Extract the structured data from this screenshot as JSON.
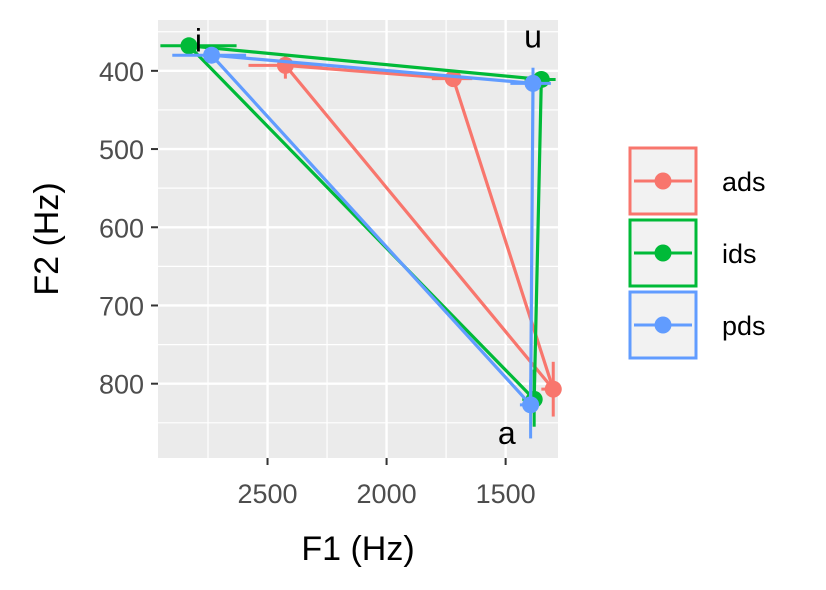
{
  "chart_data": {
    "type": "line",
    "title": "",
    "xlabel": "F1 (Hz)",
    "ylabel": "F2 (Hz)",
    "x_reversed": true,
    "y_reversed": true,
    "xlim": [
      2960,
      1280
    ],
    "ylim": [
      335,
      895
    ],
    "x_ticks": [
      2500,
      2000,
      1500
    ],
    "x_tick_labels": [
      "2500",
      "2000",
      "1500"
    ],
    "y_ticks": [
      400,
      500,
      600,
      700,
      800
    ],
    "y_tick_labels": [
      "400",
      "500",
      "600",
      "700",
      "800"
    ],
    "grid": true,
    "legend_position": "right",
    "vowels": [
      {
        "label": "i",
        "x": 2790,
        "y": 360
      },
      {
        "label": "u",
        "x": 1385,
        "y": 355
      },
      {
        "label": "a",
        "x": 1495,
        "y": 862
      }
    ],
    "series": [
      {
        "name": "ads",
        "color": "#F8766D",
        "points": [
          {
            "vowel": "i",
            "x": 2425,
            "y": 393,
            "x_err": [
              2580,
              2270
            ],
            "y_err": [
              380,
              410
            ]
          },
          {
            "vowel": "u",
            "x": 1720,
            "y": 410,
            "x_err": [
              1810,
              1640
            ],
            "y_err": [
              402,
              418
            ]
          },
          {
            "vowel": "a",
            "x": 1300,
            "y": 807,
            "x_err": [
              1350,
              1265
            ],
            "y_err": [
              772,
              842
            ]
          }
        ]
      },
      {
        "name": "ids",
        "color": "#00BA38",
        "points": [
          {
            "vowel": "i",
            "x": 2830,
            "y": 368,
            "x_err": [
              2950,
              2630
            ],
            "y_err": [
              358,
              378
            ]
          },
          {
            "vowel": "u",
            "x": 1350,
            "y": 411,
            "x_err": [
              1420,
              1290
            ],
            "y_err": [
              404,
              418
            ]
          },
          {
            "vowel": "a",
            "x": 1380,
            "y": 820,
            "x_err": [
              1430,
              1345
            ],
            "y_err": [
              782,
              855
            ]
          }
        ]
      },
      {
        "name": "pds",
        "color": "#619CFF",
        "points": [
          {
            "vowel": "i",
            "x": 2735,
            "y": 380,
            "x_err": [
              2900,
              2590
            ],
            "y_err": [
              370,
              390
            ]
          },
          {
            "vowel": "u",
            "x": 1385,
            "y": 416,
            "x_err": [
              1480,
              1310
            ],
            "y_err": [
              396,
              436
            ]
          },
          {
            "vowel": "a",
            "x": 1395,
            "y": 827,
            "x_err": [
              1440,
              1360
            ],
            "y_err": [
              795,
              870
            ]
          }
        ]
      }
    ]
  }
}
